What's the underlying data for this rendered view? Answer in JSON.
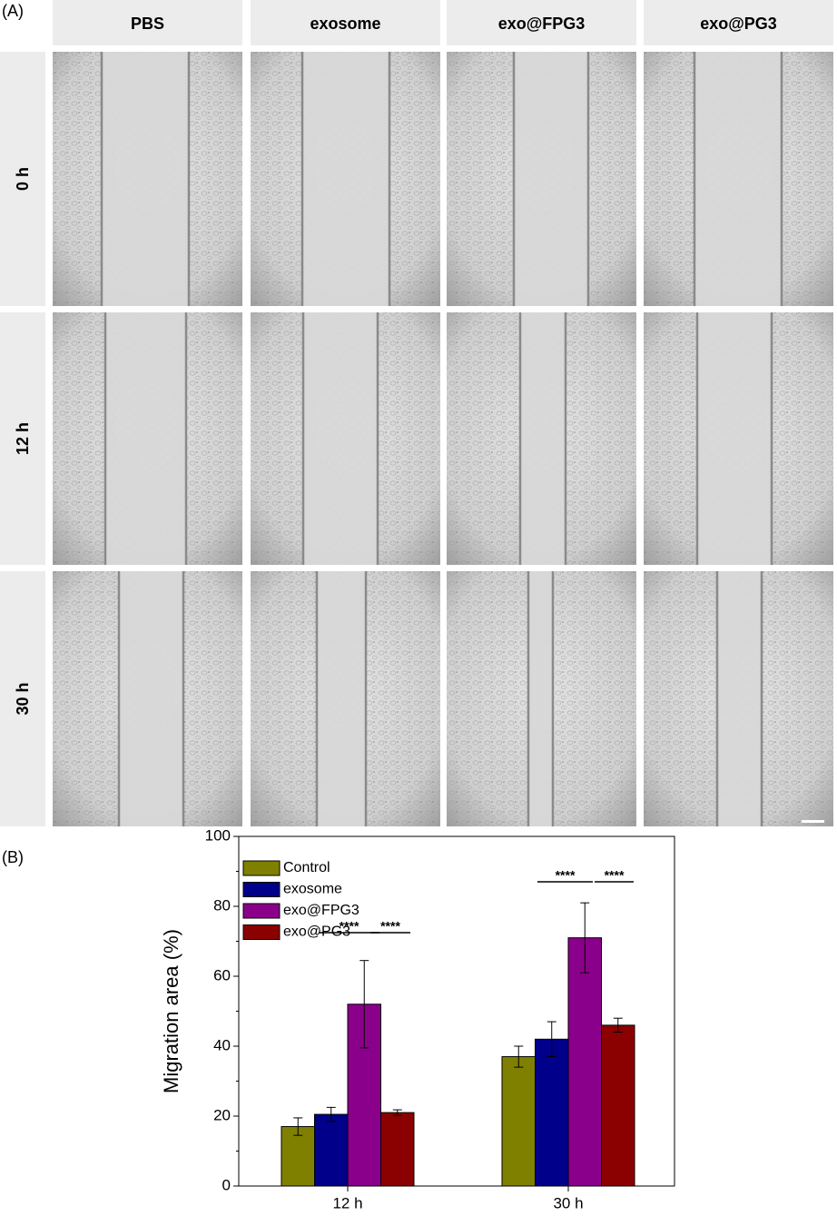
{
  "panel_a": {
    "label": "(A)",
    "columns": [
      "PBS",
      "exosome",
      "exo@FPG3",
      "exo@PG3"
    ],
    "rows": [
      "0 h",
      "12 h",
      "30 h"
    ]
  },
  "panel_b_label": "(B)",
  "chart_data": {
    "type": "bar",
    "y_label": "Migration area (%)",
    "categories": [
      "12 h",
      "30 h"
    ],
    "series": [
      {
        "name": "Control",
        "color": "#808000",
        "values": [
          17,
          37
        ],
        "errors": [
          2.5,
          3
        ]
      },
      {
        "name": "exosome",
        "color": "#00008b",
        "values": [
          20.5,
          42
        ],
        "errors": [
          2,
          5
        ]
      },
      {
        "name": "exo@FPG3",
        "color": "#8b008b",
        "values": [
          52,
          71
        ],
        "errors": [
          12.5,
          10
        ]
      },
      {
        "name": "exo@PG3",
        "color": "#8b0000",
        "values": [
          21,
          46
        ],
        "errors": [
          0.8,
          2
        ]
      }
    ],
    "ylim": [
      0,
      100
    ],
    "yticks": [
      0,
      20,
      40,
      60,
      80,
      100
    ],
    "annotations": [
      "****",
      "****",
      "****",
      "****"
    ],
    "legend": "upper-left"
  }
}
